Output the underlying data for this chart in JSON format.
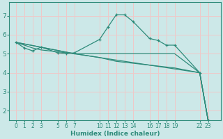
{
  "bg_color": "#cce8e8",
  "grid_color": "#f0c8c8",
  "line_color": "#2e8b7a",
  "xlabel": "Humidex (Indice chaleur)",
  "xtick_labels": [
    "0",
    "1",
    "2",
    "3",
    "5",
    "6",
    "7",
    "10",
    "11",
    "12",
    "13",
    "14",
    "16",
    "17",
    "18",
    "19",
    "22",
    "23"
  ],
  "xtick_pos": [
    0,
    1,
    2,
    3,
    5,
    6,
    7,
    10,
    11,
    12,
    13,
    14,
    16,
    17,
    18,
    19,
    22,
    23
  ],
  "yticks": [
    2,
    3,
    4,
    5,
    6,
    7
  ],
  "xlim": [
    -0.8,
    24.5
  ],
  "ylim": [
    1.5,
    7.7
  ],
  "line1_x": [
    0,
    1,
    2,
    3,
    5,
    6,
    7,
    10,
    11,
    12,
    13,
    14,
    16,
    17,
    18,
    19,
    22,
    23
  ],
  "line1_y": [
    5.6,
    5.3,
    5.15,
    5.35,
    5.05,
    5.0,
    5.05,
    5.75,
    6.4,
    7.05,
    7.05,
    6.7,
    5.8,
    5.7,
    5.45,
    5.45,
    4.0,
    1.5
  ],
  "line2_x": [
    0,
    1,
    2,
    3,
    5,
    6,
    7,
    10,
    11,
    12,
    13,
    14,
    16,
    17,
    18,
    19,
    22,
    23
  ],
  "line2_y": [
    5.6,
    5.45,
    5.3,
    5.2,
    5.1,
    5.05,
    5.0,
    4.8,
    4.7,
    4.6,
    4.55,
    4.5,
    4.4,
    4.35,
    4.3,
    4.25,
    4.0,
    1.5
  ],
  "line3_x": [
    0,
    7,
    19,
    22,
    23
  ],
  "line3_y": [
    5.6,
    5.0,
    5.0,
    4.0,
    1.5
  ],
  "line4_x": [
    0,
    7,
    22,
    23
  ],
  "line4_y": [
    5.6,
    5.0,
    4.0,
    1.5
  ]
}
